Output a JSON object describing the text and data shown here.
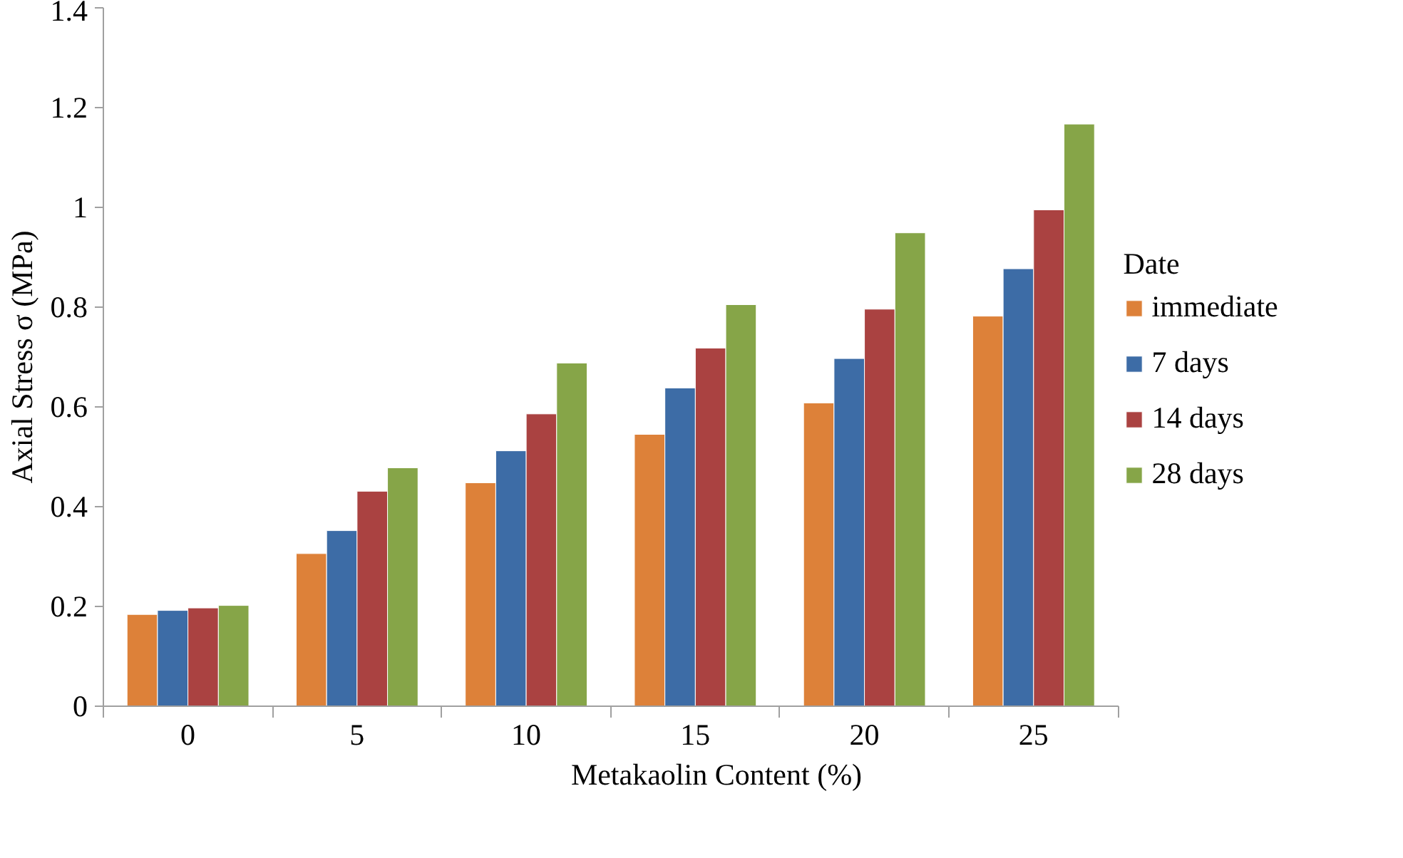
{
  "chart_data": {
    "type": "bar",
    "xlabel": "Metakaolin Content (%)",
    "ylabel": "Axial Stress σ (MPa)",
    "legend_title": "Date",
    "legend": "right",
    "categories": [
      "0",
      "5",
      "10",
      "15",
      "20",
      "25"
    ],
    "ylim": [
      0,
      1.4
    ],
    "yticks": [
      0,
      0.2,
      0.4,
      0.6,
      0.8,
      1,
      1.2,
      1.4
    ],
    "grid": false,
    "series": [
      {
        "name": "immediate",
        "color": "#dd8139",
        "values": [
          0.184,
          0.306,
          0.448,
          0.545,
          0.608,
          0.782
        ]
      },
      {
        "name": "7 days",
        "color": "#3d6ca6",
        "values": [
          0.192,
          0.352,
          0.512,
          0.638,
          0.697,
          0.877
        ]
      },
      {
        "name": "14 days",
        "color": "#aa4241",
        "values": [
          0.197,
          0.431,
          0.586,
          0.718,
          0.796,
          0.995
        ]
      },
      {
        "name": "28 days",
        "color": "#86a548",
        "values": [
          0.202,
          0.478,
          0.688,
          0.805,
          0.949,
          1.167
        ]
      }
    ]
  }
}
